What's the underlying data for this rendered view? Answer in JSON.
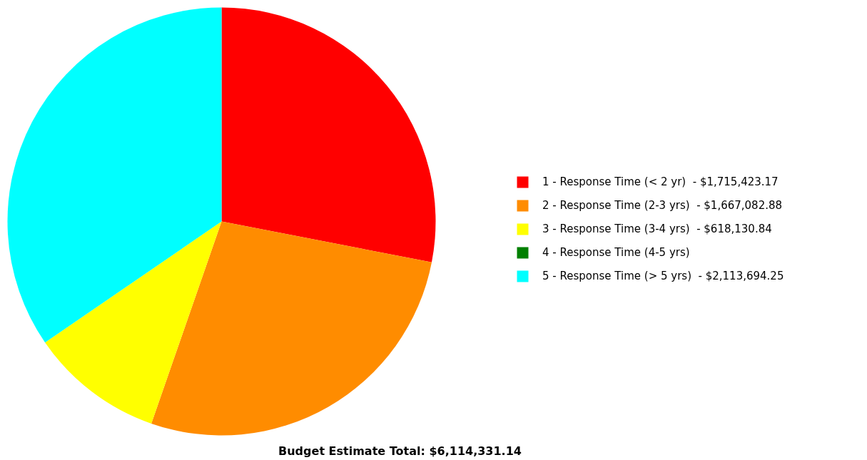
{
  "chart_data": {
    "type": "pie",
    "title": "Budget Estimate Total: $6,114,331.14",
    "categories": [
      "1 - Response Time (< 2 yr)  -",
      "2 - Response Time (2-3 yrs)  -",
      "3 - Response Time (3-4 yrs)  -",
      "4 - Response Time (4-5 yrs)",
      "5 - Response Time (> 5 yrs)  -"
    ],
    "values": [
      1715423.17,
      1667082.88,
      618130.84,
      0,
      2113694.25
    ],
    "value_labels": [
      "$1,715,423.17",
      "$1,667,082.88",
      "$618,130.84",
      null,
      "$2,113,694.25"
    ],
    "colors": [
      "#ff0000",
      "#ff8c00",
      "#ffff00",
      "#008000",
      "#00ffff"
    ],
    "legend": "right"
  }
}
